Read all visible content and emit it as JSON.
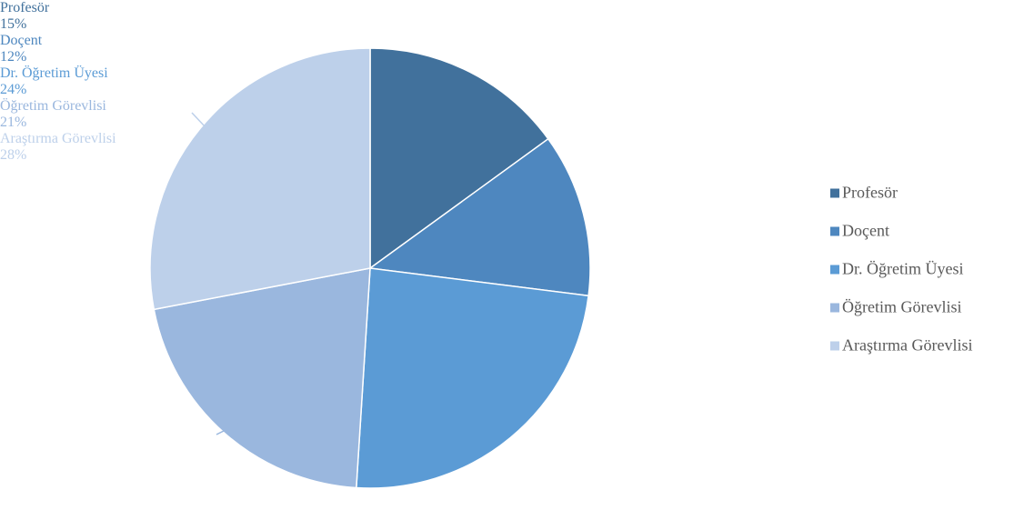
{
  "chart_data": {
    "type": "pie",
    "categories": [
      "Profesör",
      "Doçent",
      "Dr. Öğretim Üyesi",
      "Öğretim Görevlisi",
      "Araştırma Görevlisi"
    ],
    "values": [
      15,
      12,
      24,
      21,
      28
    ],
    "value_labels": [
      "15%",
      "12%",
      "24%",
      "21%",
      "28%"
    ],
    "colors": [
      "#41719c",
      "#4e87bf",
      "#5b9bd5",
      "#9ab7de",
      "#bdd0ea"
    ],
    "legend": "right"
  }
}
